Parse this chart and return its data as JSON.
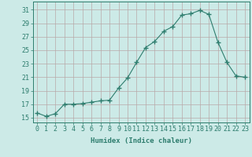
{
  "x": [
    0,
    1,
    2,
    3,
    4,
    5,
    6,
    7,
    8,
    9,
    10,
    11,
    12,
    13,
    14,
    15,
    16,
    17,
    18,
    19,
    20,
    21,
    22,
    23
  ],
  "y": [
    15.7,
    15.2,
    15.6,
    17.0,
    17.0,
    17.1,
    17.3,
    17.5,
    17.6,
    19.4,
    20.9,
    23.2,
    25.4,
    26.3,
    27.8,
    28.5,
    30.2,
    30.4,
    30.9,
    30.3,
    26.2,
    23.2,
    21.2,
    21.0
  ],
  "line_color": "#2e7d6e",
  "marker": "+",
  "marker_size": 4,
  "bg_color": "#cceae7",
  "grid_color": "#b8a8a8",
  "xlabel": "Humidex (Indice chaleur)",
  "ylabel_ticks": [
    15,
    17,
    19,
    21,
    23,
    25,
    27,
    29,
    31
  ],
  "ylim": [
    14.3,
    32.2
  ],
  "xlim": [
    -0.5,
    23.5
  ],
  "xlabel_fontsize": 6.5,
  "tick_fontsize": 6,
  "label_color": "#2e7d6e",
  "spine_color": "#2e7d6e"
}
